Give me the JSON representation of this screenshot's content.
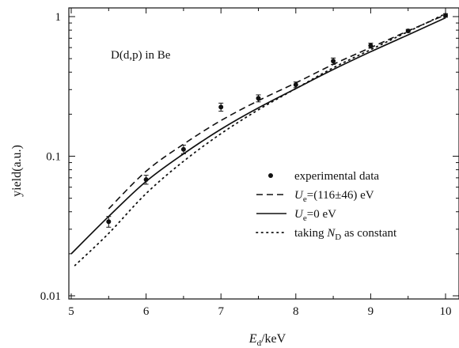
{
  "chart_data": {
    "type": "scatter",
    "title": "",
    "annotation": "D(d,p) in Be",
    "xlabel": {
      "main": "E",
      "sub": "d",
      "rest": "/keV"
    },
    "ylabel": "yield(a.u.)",
    "xlim": [
      5,
      10
    ],
    "ylim": [
      0.01,
      1.2
    ],
    "yscale": "log",
    "x_ticks": [
      5,
      6,
      7,
      8,
      9,
      10
    ],
    "x_tick_labels": [
      "5",
      "6",
      "7",
      "8",
      "9",
      "10"
    ],
    "y_ticks": [
      0.01,
      0.1,
      1
    ],
    "y_tick_labels": [
      "0.01",
      "0.1",
      "1"
    ],
    "grid": false,
    "legend_position": "bottom-right",
    "series": [
      {
        "kind": "points",
        "legend": {
          "text": "experimental data"
        },
        "x": [
          5.5,
          6.0,
          6.5,
          7.0,
          7.5,
          8.0,
          8.5,
          9.0,
          9.5,
          10.0
        ],
        "y": [
          0.034,
          0.068,
          0.112,
          0.225,
          0.26,
          0.325,
          0.48,
          0.62,
          0.79,
          1.02
        ],
        "err": [
          0.003,
          0.005,
          0.008,
          0.015,
          0.015,
          0.015,
          0.025,
          0.025,
          0.02,
          0.03
        ]
      },
      {
        "kind": "dashed",
        "legend": {
          "pre": "U",
          "sub": "e",
          "post": "=(116±46) eV"
        },
        "x": [
          5.5,
          6.0,
          6.5,
          7.0,
          7.5,
          8.0,
          8.5,
          9.0,
          9.5,
          10.0
        ],
        "y": [
          0.042,
          0.078,
          0.122,
          0.18,
          0.25,
          0.335,
          0.455,
          0.6,
          0.79,
          1.03
        ]
      },
      {
        "kind": "solid",
        "legend": {
          "pre": "U",
          "sub": "e",
          "post": "=0 eV"
        },
        "x": [
          5.0,
          5.5,
          6.0,
          6.5,
          7.0,
          7.5,
          8.0,
          8.5,
          9.0,
          9.5,
          10.0
        ],
        "y": [
          0.02,
          0.037,
          0.066,
          0.104,
          0.156,
          0.222,
          0.305,
          0.418,
          0.56,
          0.74,
          0.98
        ]
      },
      {
        "kind": "dotted",
        "legend": {
          "pre": "taking ",
          "italic": "N",
          "sub": "D",
          "post": " as constant"
        },
        "x": [
          5.05,
          5.5,
          6.0,
          6.5,
          7.0,
          7.5,
          8.0,
          8.5,
          9.0,
          9.5,
          10.0
        ],
        "y": [
          0.0165,
          0.028,
          0.054,
          0.092,
          0.145,
          0.215,
          0.305,
          0.43,
          0.58,
          0.78,
          1.05
        ]
      }
    ]
  }
}
